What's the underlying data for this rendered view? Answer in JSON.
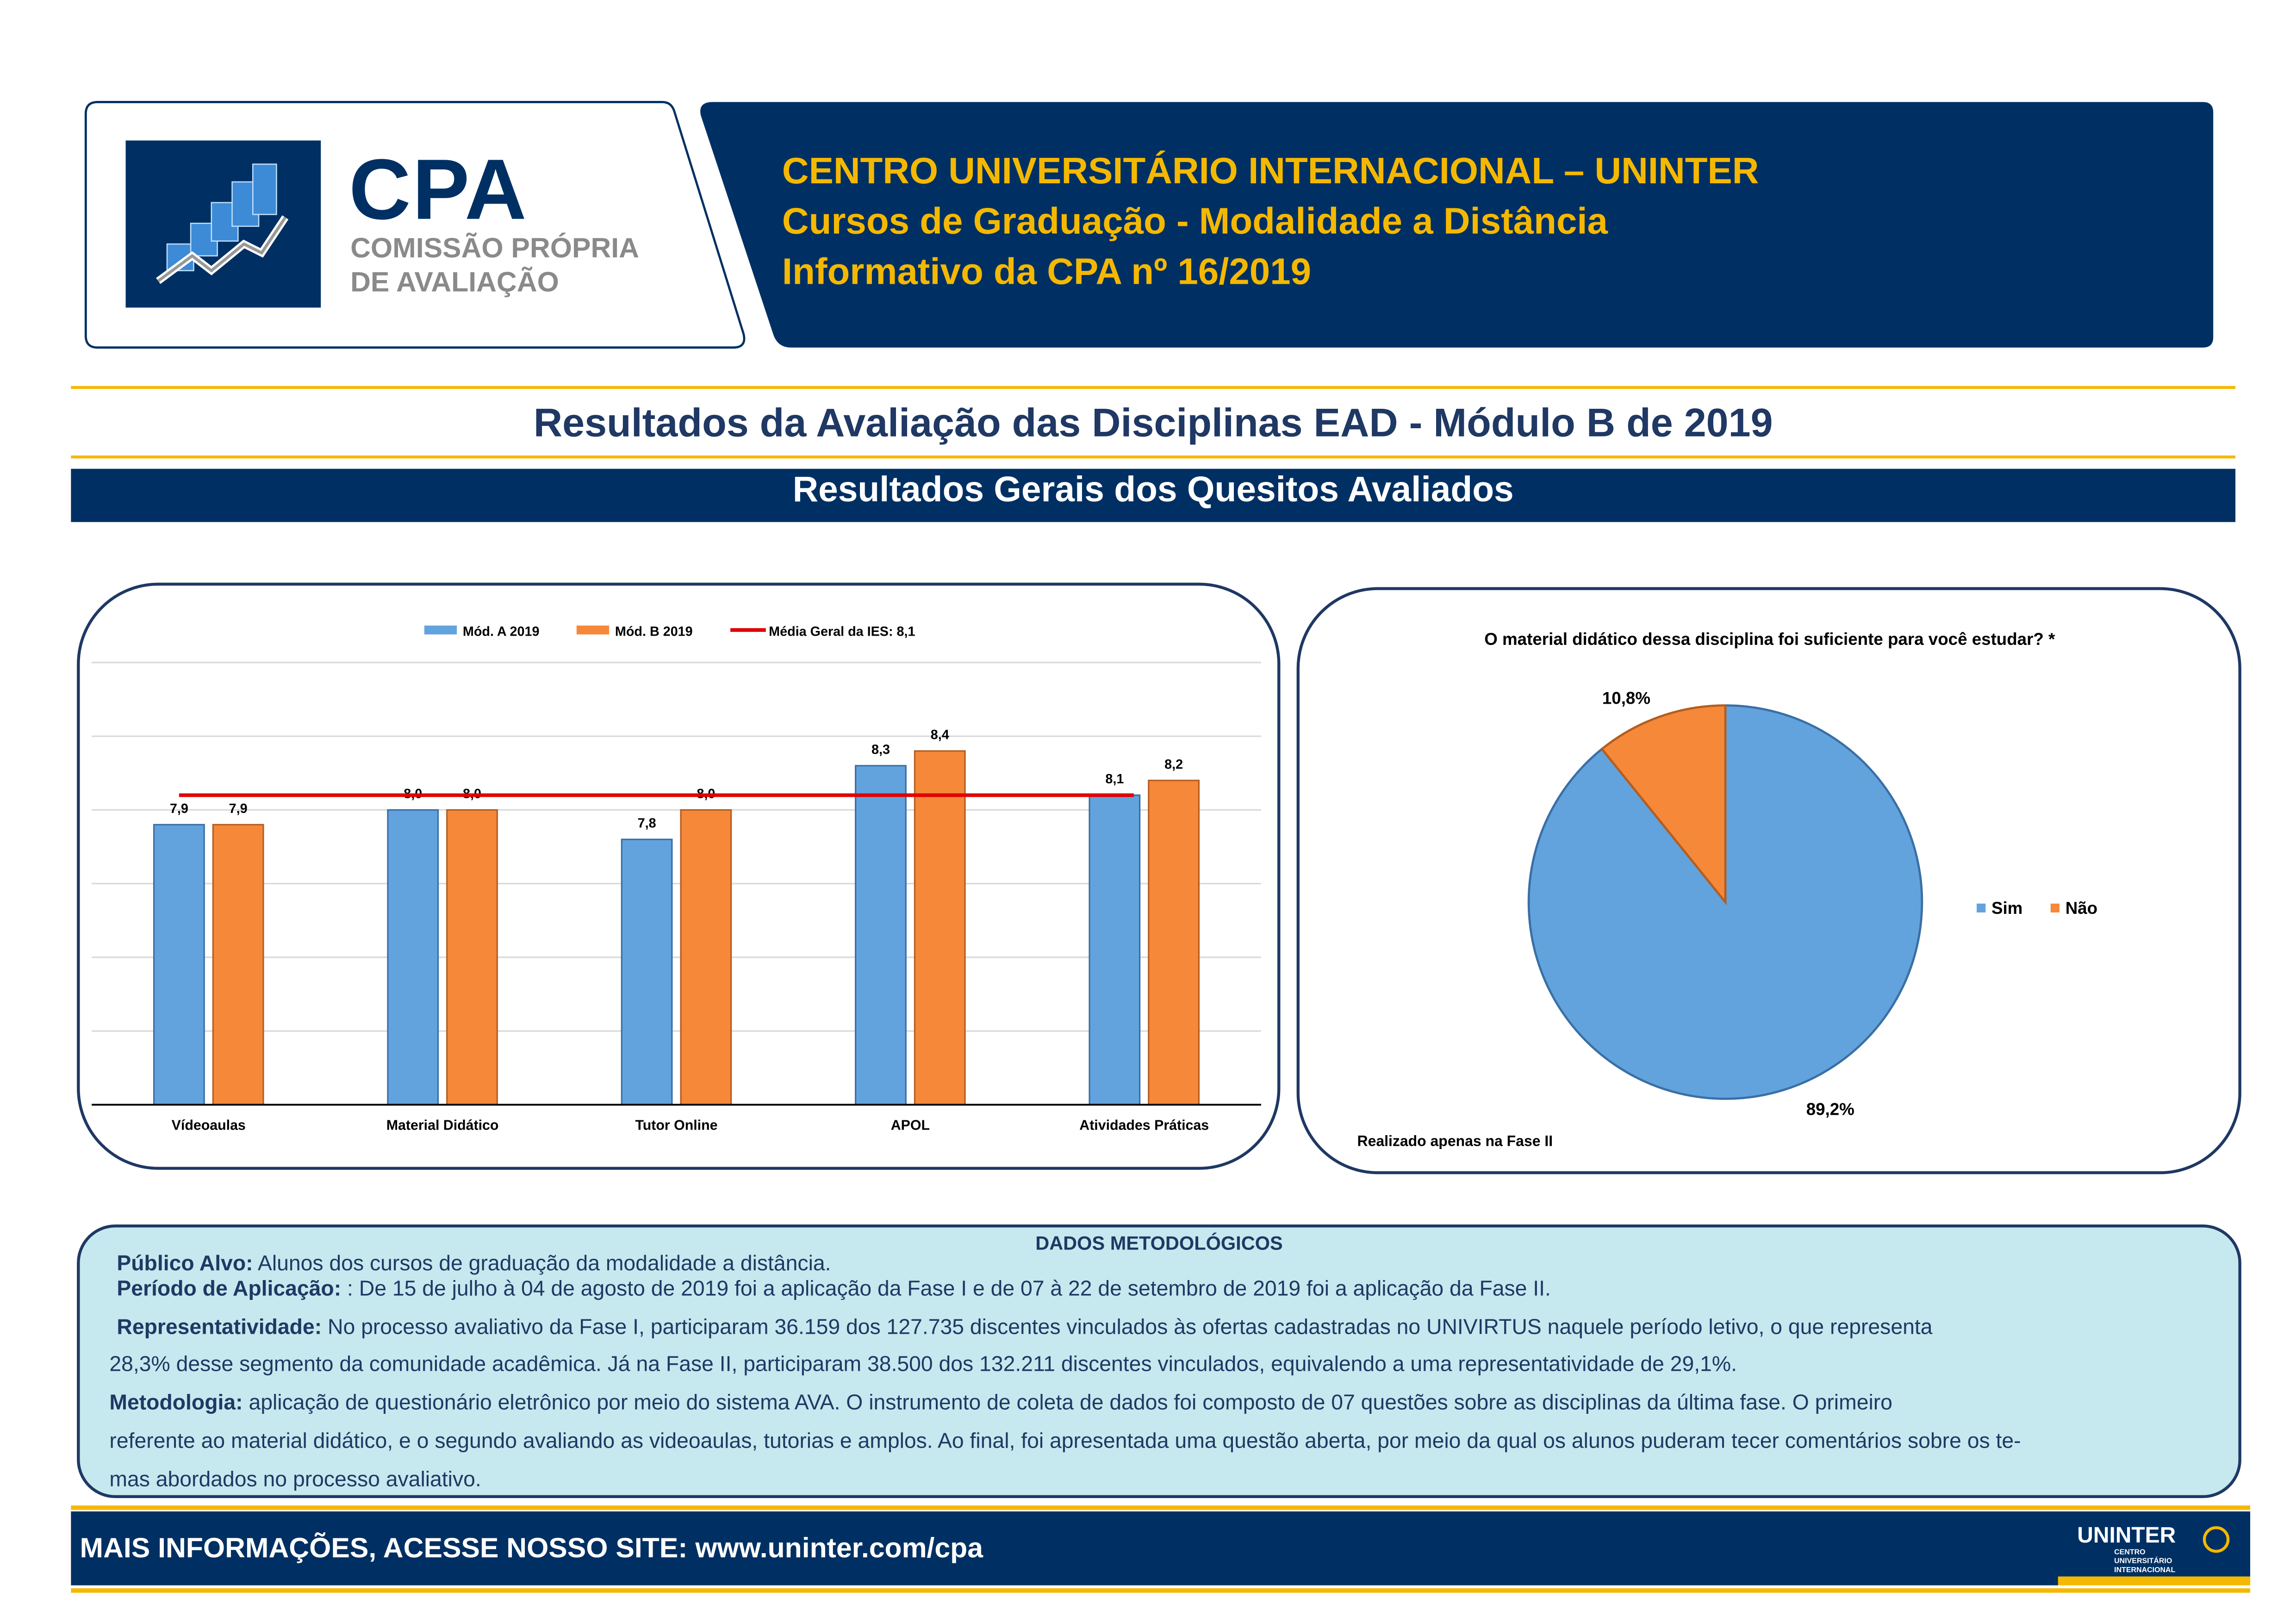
{
  "header": {
    "logo": {
      "acronym": "CPA",
      "line1": "COMISSÃO PRÓPRIA",
      "line2": "DE AVALIAÇÃO"
    },
    "title_line1": "CENTRO UNIVERSITÁRIO INTERNACIONAL – UNINTER",
    "title_line2": "Cursos de Graduação - Modalidade a Distância",
    "title_line3": "Informativo da CPA nº 16/2019"
  },
  "page_title": "Resultados da Avaliação das Disciplinas EAD - Módulo B de 2019",
  "section_title": "Resultados Gerais dos Quesitos Avaliados",
  "colors": {
    "navy": "#003063",
    "gold": "#f5b800",
    "blue": "#62a3dd",
    "orange": "#f6883a",
    "red": "#e00000",
    "light_cyan": "#c5e9ee"
  },
  "chart_data": [
    {
      "type": "bar",
      "categories": [
        "Vídeoaulas",
        "Material Didático",
        "Tutor Online",
        "APOL",
        "Atividades Práticas"
      ],
      "series": [
        {
          "name": "Mód. A 2019",
          "values": [
            7.9,
            8.0,
            7.8,
            8.3,
            8.1
          ],
          "labels": [
            "7,9",
            "8,0",
            "7,8",
            "8,3",
            "8,1"
          ]
        },
        {
          "name": "Mód. B 2019",
          "values": [
            7.9,
            8.0,
            8.0,
            8.4,
            8.2
          ],
          "labels": [
            "7,9",
            "8,0",
            "8,0",
            "8,4",
            "8,2"
          ]
        }
      ],
      "reference_line": {
        "name": "Média Geral da IES: 8,1",
        "value": 8.1
      },
      "ylim": [
        6.0,
        9.0
      ],
      "grid": true,
      "legend": "top-center"
    },
    {
      "type": "pie",
      "title": "O material didático dessa disciplina foi suficiente para você estudar? *",
      "slices": [
        {
          "name": "Sim",
          "value": 89.2,
          "label": "89,2%"
        },
        {
          "name": "Não",
          "value": 10.8,
          "label": "10,8%"
        }
      ],
      "legend": "right",
      "footnote": "Realizado apenas na Fase II"
    }
  ],
  "dados": {
    "title": "DADOS METODOLÓGICOS",
    "publico_label": "Público Alvo:",
    "publico_text": " Alunos dos cursos de graduação da modalidade a distância.",
    "periodo_label": "Período de Aplicação:",
    "periodo_text": " : De 15 de julho à 04 de agosto de 2019 foi a aplicação da Fase I e de 07 à 22 de setembro de 2019 foi a aplicação da Fase II.",
    "repr_label": "Representatividade:",
    "repr_text1": "  No processo avaliativo da Fase I, participaram 36.159 dos 127.735 discentes vinculados às ofertas cadastradas no UNIVIRTUS naquele período letivo, o que representa",
    "repr_text2": "28,3% desse segmento da comunidade acadêmica. Já na Fase II, participaram 38.500 dos 132.211 discentes vinculados, equivalendo a uma representatividade de 29,1%.",
    "metod_label": "Metodologia:",
    "metod_text1": " aplicação de questionário eletrônico por meio do sistema AVA. O instrumento de coleta de dados foi composto de 07 questões sobre as disciplinas da última fase. O primeiro",
    "metod_text2": "referente ao material didático,  e o segundo avaliando as videoaulas, tutorias e amplos. Ao final, foi apresentada uma questão aberta, por meio da qual os alunos puderam tecer comentários sobre os te-",
    "metod_text3": "mas abordados no processo avaliativo."
  },
  "footer": {
    "text": "MAIS INFORMAÇÕES, ACESSE NOSSO SITE: www.uninter.com/cpa",
    "logo": {
      "name": "UNINTER",
      "sub1": "CENTRO",
      "sub2": "UNIVERSITÁRIO",
      "sub3": "INTERNACIONAL"
    }
  }
}
